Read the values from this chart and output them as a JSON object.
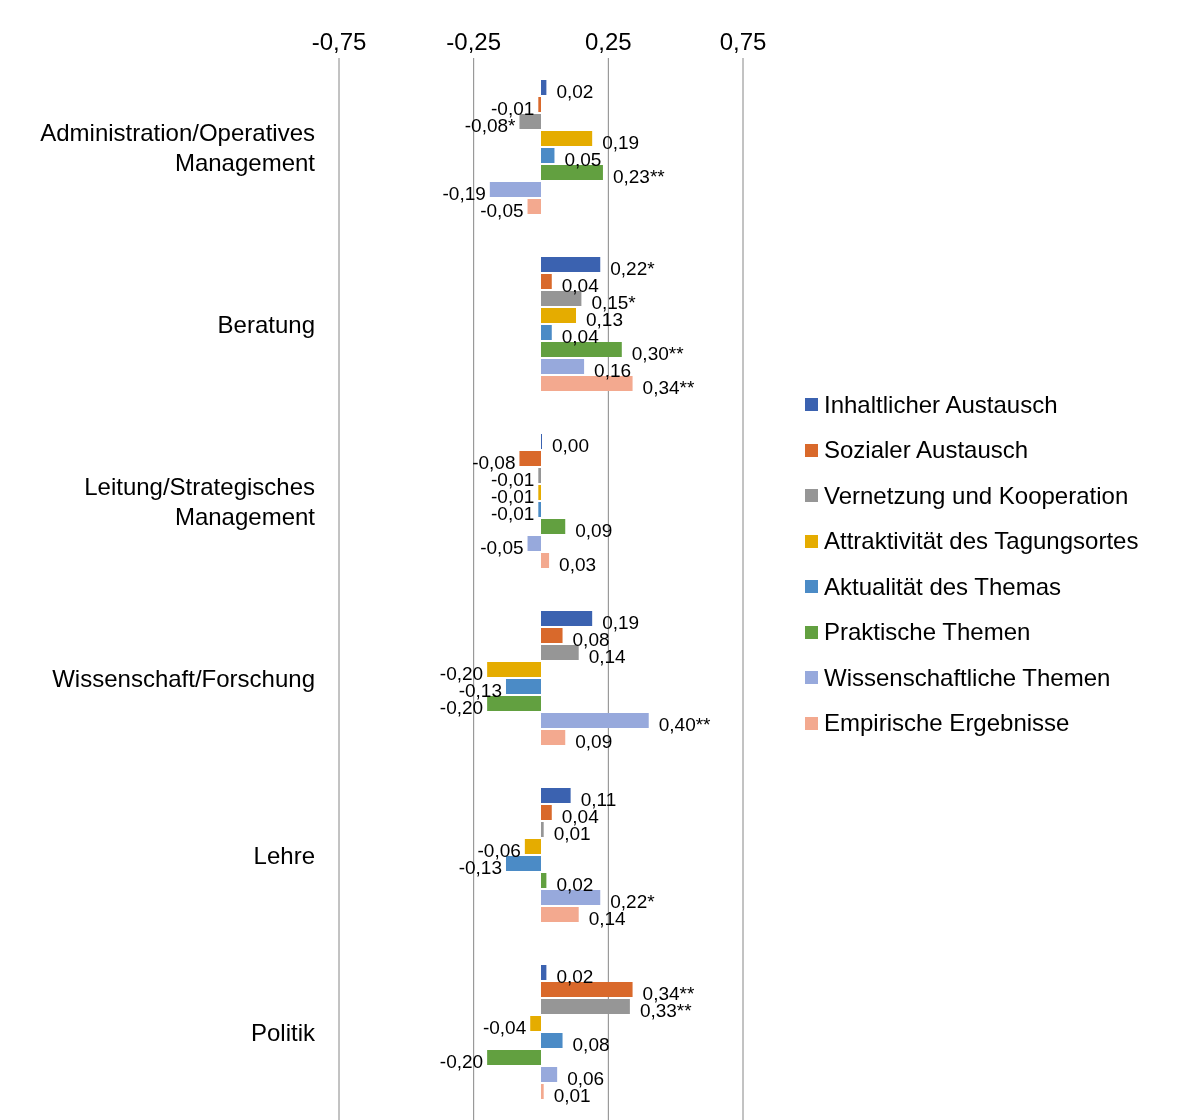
{
  "chart_data": {
    "type": "bar",
    "orientation": "horizontal",
    "categories": [
      "Administration/Operatives Management",
      "Beratung",
      "Leitung/Strategisches Management",
      "Wissenschaft/Forschung",
      "Lehre",
      "Politik"
    ],
    "xlim": [
      -0.75,
      0.75
    ],
    "xticks": [
      {
        "value": -0.75,
        "label": "-0,75"
      },
      {
        "value": -0.25,
        "label": "-0,25"
      },
      {
        "value": 0.25,
        "label": "0,25"
      },
      {
        "value": 0.75,
        "label": "0,75"
      }
    ],
    "grid": "x",
    "legend": "right",
    "series": [
      {
        "name": "Inhaltlicher Austausch",
        "color": "#3b62b0",
        "values": [
          0.02,
          0.22,
          0.0,
          0.19,
          0.11,
          0.02
        ],
        "value_labels": [
          "0,02",
          "0,22*",
          "0,00",
          "0,19",
          "0,11",
          "0,02"
        ]
      },
      {
        "name": "Sozialer Austausch",
        "color": "#d9692b",
        "values": [
          -0.01,
          0.04,
          -0.08,
          0.08,
          0.04,
          0.34
        ],
        "value_labels": [
          "-0,01",
          "0,04",
          "-0,08",
          "0,08",
          "0,04",
          "0,34**"
        ]
      },
      {
        "name": "Vernetzung und Kooperation",
        "color": "#969696",
        "values": [
          -0.08,
          0.15,
          -0.01,
          0.14,
          0.01,
          0.33
        ],
        "value_labels": [
          "-0,08*",
          "0,15*",
          "-0,01",
          "0,14",
          "0,01",
          "0,33**"
        ]
      },
      {
        "name": "Attraktivität des Tagungsortes",
        "color": "#e5ac00",
        "values": [
          0.19,
          0.13,
          -0.01,
          -0.2,
          -0.06,
          -0.04
        ],
        "value_labels": [
          "0,19",
          "0,13",
          "-0,01",
          "-0,20",
          "-0,06",
          "-0,04"
        ]
      },
      {
        "name": "Aktualität des Themas",
        "color": "#4b8bc6",
        "values": [
          0.05,
          0.04,
          -0.01,
          -0.13,
          -0.13,
          0.08
        ],
        "value_labels": [
          "0,05",
          "0,04",
          "-0,01",
          "-0,13",
          "-0,13",
          "0,08"
        ]
      },
      {
        "name": "Praktische Themen",
        "color": "#62a040",
        "values": [
          0.23,
          0.3,
          0.09,
          -0.2,
          0.02,
          -0.2
        ],
        "value_labels": [
          "0,23**",
          "0,30**",
          "0,09",
          "-0,20",
          "0,02",
          "-0,20"
        ]
      },
      {
        "name": "Wissenschaftliche Themen",
        "color": "#97a9dc",
        "values": [
          -0.19,
          0.16,
          -0.05,
          0.4,
          0.22,
          0.06
        ],
        "value_labels": [
          "-0,19",
          "0,16",
          "-0,05",
          "0,40**",
          "0,22*",
          "0,06"
        ]
      },
      {
        "name": "Empirische Ergebnisse",
        "color": "#f3a98f",
        "values": [
          -0.05,
          0.34,
          0.03,
          0.09,
          0.14,
          0.01
        ],
        "value_labels": [
          "-0,05",
          "0,34**",
          "0,03",
          "0,09",
          "0,14",
          "0,01"
        ]
      }
    ]
  }
}
